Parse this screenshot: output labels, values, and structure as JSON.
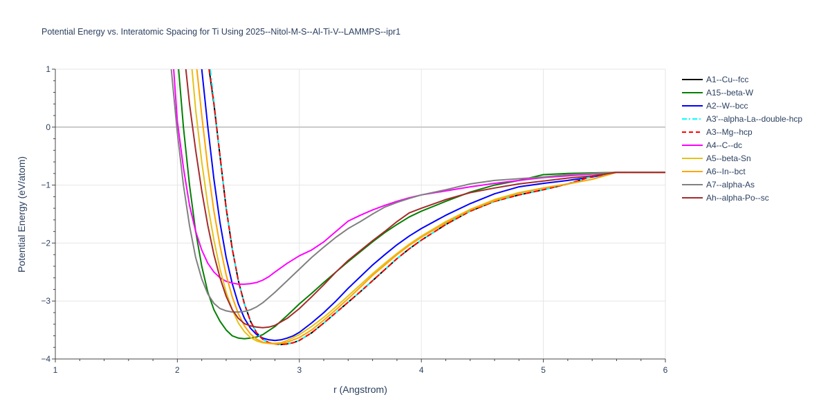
{
  "chart_data": {
    "type": "line",
    "title": "Potential Energy vs. Interatomic Spacing for Ti Using 2025--Nitol-M-S--Al-Ti-V--LAMMPS--ipr1",
    "xlabel": "r (Angstrom)",
    "ylabel": "Potential Energy (eV/atom)",
    "xlim": [
      1,
      6
    ],
    "ylim": [
      -4,
      1
    ],
    "xticks": [
      "1",
      "2",
      "3",
      "4",
      "5",
      "6"
    ],
    "yticks": [
      "−4",
      "−3",
      "−2",
      "−1",
      "0",
      "1"
    ],
    "grid": true,
    "legend_position": "right",
    "series": [
      {
        "name": "A1--Cu--fcc",
        "color": "#000000",
        "dash": "solid",
        "x": [
          2.26,
          2.3,
          2.35,
          2.4,
          2.45,
          2.5,
          2.55,
          2.6,
          2.65,
          2.7,
          2.75,
          2.8,
          2.85,
          2.9,
          2.95,
          3.0,
          3.1,
          3.2,
          3.3,
          3.4,
          3.5,
          3.6,
          3.7,
          3.8,
          3.9,
          4.0,
          4.2,
          4.4,
          4.6,
          4.8,
          5.0,
          5.2,
          5.4,
          5.6,
          6.0
        ],
        "y": [
          1.0,
          0.4,
          -0.5,
          -1.4,
          -2.1,
          -2.65,
          -3.05,
          -3.35,
          -3.55,
          -3.66,
          -3.72,
          -3.74,
          -3.75,
          -3.74,
          -3.72,
          -3.68,
          -3.55,
          -3.38,
          -3.2,
          -3.02,
          -2.84,
          -2.65,
          -2.46,
          -2.27,
          -2.1,
          -1.95,
          -1.68,
          -1.45,
          -1.28,
          -1.17,
          -1.08,
          -0.98,
          -0.85,
          -0.78,
          -0.78
        ]
      },
      {
        "name": "A15--beta-W",
        "color": "#008000",
        "dash": "solid",
        "x": [
          2.01,
          2.05,
          2.1,
          2.15,
          2.2,
          2.25,
          2.3,
          2.35,
          2.4,
          2.45,
          2.5,
          2.55,
          2.6,
          2.65,
          2.7,
          2.8,
          2.9,
          3.0,
          3.1,
          3.2,
          3.3,
          3.4,
          3.5,
          3.6,
          3.7,
          3.8,
          3.9,
          4.0,
          4.2,
          4.4,
          4.6,
          4.8,
          5.0,
          5.2,
          5.6,
          6.0
        ],
        "y": [
          1.0,
          0.0,
          -1.0,
          -1.8,
          -2.4,
          -2.85,
          -3.15,
          -3.35,
          -3.5,
          -3.6,
          -3.64,
          -3.65,
          -3.64,
          -3.62,
          -3.58,
          -3.44,
          -3.25,
          -3.05,
          -2.87,
          -2.68,
          -2.5,
          -2.32,
          -2.15,
          -1.98,
          -1.82,
          -1.68,
          -1.55,
          -1.45,
          -1.28,
          -1.12,
          -1.0,
          -0.92,
          -0.82,
          -0.8,
          -0.78,
          -0.78
        ]
      },
      {
        "name": "A2--W--bcc",
        "color": "#0000ff",
        "dash": "solid",
        "x": [
          2.2,
          2.25,
          2.3,
          2.35,
          2.4,
          2.45,
          2.5,
          2.55,
          2.6,
          2.65,
          2.7,
          2.75,
          2.8,
          2.85,
          2.9,
          2.95,
          3.0,
          3.1,
          3.2,
          3.3,
          3.4,
          3.5,
          3.6,
          3.7,
          3.8,
          3.9,
          4.0,
          4.2,
          4.4,
          4.6,
          4.8,
          5.0,
          5.2,
          5.4,
          5.6,
          6.0
        ],
        "y": [
          1.0,
          0.0,
          -0.9,
          -1.65,
          -2.25,
          -2.7,
          -3.05,
          -3.3,
          -3.47,
          -3.58,
          -3.64,
          -3.67,
          -3.68,
          -3.67,
          -3.64,
          -3.6,
          -3.54,
          -3.38,
          -3.2,
          -3.0,
          -2.78,
          -2.58,
          -2.38,
          -2.2,
          -2.03,
          -1.88,
          -1.75,
          -1.52,
          -1.32,
          -1.15,
          -1.03,
          -0.97,
          -0.92,
          -0.86,
          -0.78,
          -0.78
        ]
      },
      {
        "name": "A3'--alpha-La--double-hcp",
        "color": "#00ffff",
        "dash": "dashdot",
        "x": [
          2.27,
          2.3,
          2.35,
          2.4,
          2.45,
          2.5,
          2.55,
          2.6,
          2.65,
          2.7,
          2.75,
          2.8,
          2.85,
          2.9,
          2.95,
          3.0,
          3.1,
          3.2,
          3.3,
          3.4,
          3.5,
          3.6,
          3.7,
          3.8,
          3.9,
          4.0,
          4.2,
          4.4,
          4.6,
          4.8,
          5.0,
          5.2,
          5.4,
          5.6,
          6.0
        ],
        "y": [
          1.0,
          0.45,
          -0.5,
          -1.4,
          -2.1,
          -2.65,
          -3.05,
          -3.35,
          -3.55,
          -3.66,
          -3.72,
          -3.74,
          -3.75,
          -3.74,
          -3.72,
          -3.68,
          -3.55,
          -3.38,
          -3.2,
          -3.02,
          -2.84,
          -2.65,
          -2.46,
          -2.27,
          -2.1,
          -1.95,
          -1.68,
          -1.45,
          -1.28,
          -1.17,
          -1.08,
          -0.98,
          -0.85,
          -0.78,
          -0.78
        ]
      },
      {
        "name": "A3--Mg--hcp",
        "color": "#ff0000",
        "dash": "dash",
        "x": [
          2.26,
          2.3,
          2.35,
          2.4,
          2.45,
          2.5,
          2.55,
          2.6,
          2.65,
          2.7,
          2.75,
          2.8,
          2.85,
          2.9,
          2.95,
          3.0,
          3.1,
          3.2,
          3.3,
          3.4,
          3.5,
          3.6,
          3.7,
          3.8,
          3.9,
          4.0,
          4.2,
          4.4,
          4.6,
          4.8,
          5.0,
          5.2,
          5.4,
          5.6,
          6.0
        ],
        "y": [
          1.0,
          0.4,
          -0.5,
          -1.4,
          -2.1,
          -2.65,
          -3.05,
          -3.35,
          -3.55,
          -3.66,
          -3.72,
          -3.74,
          -3.75,
          -3.74,
          -3.72,
          -3.68,
          -3.55,
          -3.38,
          -3.2,
          -3.02,
          -2.84,
          -2.65,
          -2.46,
          -2.27,
          -2.1,
          -1.95,
          -1.68,
          -1.45,
          -1.28,
          -1.17,
          -1.08,
          -0.98,
          -0.85,
          -0.78,
          -0.78
        ]
      },
      {
        "name": "A4--C--dc",
        "color": "#ff00ff",
        "dash": "solid",
        "x": [
          1.97,
          2.0,
          2.05,
          2.1,
          2.15,
          2.2,
          2.25,
          2.3,
          2.35,
          2.4,
          2.45,
          2.5,
          2.55,
          2.6,
          2.65,
          2.7,
          2.75,
          2.8,
          2.9,
          3.0,
          3.1,
          3.2,
          3.3,
          3.4,
          3.5,
          3.6,
          3.7,
          3.8,
          3.9,
          4.0,
          4.2,
          4.4,
          4.6,
          4.8,
          5.0,
          5.2,
          5.6,
          6.0
        ],
        "y": [
          1.0,
          0.1,
          -0.7,
          -1.35,
          -1.8,
          -2.12,
          -2.35,
          -2.5,
          -2.6,
          -2.66,
          -2.69,
          -2.71,
          -2.71,
          -2.7,
          -2.68,
          -2.64,
          -2.58,
          -2.5,
          -2.35,
          -2.22,
          -2.12,
          -1.98,
          -1.8,
          -1.62,
          -1.52,
          -1.43,
          -1.35,
          -1.28,
          -1.22,
          -1.17,
          -1.1,
          -1.03,
          -0.97,
          -0.92,
          -0.87,
          -0.84,
          -0.78,
          -0.78
        ]
      },
      {
        "name": "A5--beta-Sn",
        "color": "#e3c21a",
        "dash": "solid",
        "x": [
          2.12,
          2.15,
          2.2,
          2.25,
          2.3,
          2.35,
          2.4,
          2.45,
          2.5,
          2.55,
          2.6,
          2.65,
          2.7,
          2.75,
          2.8,
          2.85,
          2.9,
          3.0,
          3.1,
          3.2,
          3.3,
          3.4,
          3.5,
          3.6,
          3.7,
          3.8,
          3.9,
          4.0,
          4.2,
          4.4,
          4.6,
          4.8,
          5.0,
          5.2,
          5.4,
          5.6,
          6.0
        ],
        "y": [
          1.0,
          0.3,
          -0.6,
          -1.35,
          -1.95,
          -2.45,
          -2.85,
          -3.15,
          -3.38,
          -3.53,
          -3.63,
          -3.69,
          -3.72,
          -3.73,
          -3.73,
          -3.72,
          -3.68,
          -3.58,
          -3.44,
          -3.28,
          -3.1,
          -2.91,
          -2.72,
          -2.53,
          -2.35,
          -2.18,
          -2.02,
          -1.88,
          -1.63,
          -1.42,
          -1.25,
          -1.13,
          -1.05,
          -0.98,
          -0.9,
          -0.78,
          -0.78
        ]
      },
      {
        "name": "A6--In--bct",
        "color": "#ffa500",
        "dash": "solid",
        "x": [
          2.16,
          2.2,
          2.25,
          2.3,
          2.35,
          2.4,
          2.45,
          2.5,
          2.55,
          2.6,
          2.65,
          2.7,
          2.75,
          2.8,
          2.85,
          2.9,
          3.0,
          3.1,
          3.2,
          3.3,
          3.4,
          3.5,
          3.6,
          3.7,
          3.8,
          3.9,
          4.0,
          4.2,
          4.4,
          4.6,
          4.8,
          5.0,
          5.2,
          5.4,
          5.6,
          6.0
        ],
        "y": [
          1.0,
          0.2,
          -0.7,
          -1.45,
          -2.05,
          -2.55,
          -2.93,
          -3.22,
          -3.43,
          -3.57,
          -3.66,
          -3.71,
          -3.73,
          -3.74,
          -3.73,
          -3.71,
          -3.63,
          -3.5,
          -3.33,
          -3.15,
          -2.96,
          -2.76,
          -2.56,
          -2.38,
          -2.2,
          -2.04,
          -1.9,
          -1.65,
          -1.43,
          -1.27,
          -1.14,
          -1.05,
          -0.98,
          -0.9,
          -0.78,
          -0.78
        ]
      },
      {
        "name": "A7--alpha-As",
        "color": "#808080",
        "dash": "solid",
        "x": [
          1.95,
          2.0,
          2.05,
          2.1,
          2.15,
          2.2,
          2.25,
          2.3,
          2.35,
          2.4,
          2.45,
          2.5,
          2.55,
          2.6,
          2.65,
          2.7,
          2.8,
          2.9,
          3.0,
          3.1,
          3.2,
          3.3,
          3.4,
          3.5,
          3.6,
          3.7,
          3.8,
          3.9,
          4.0,
          4.2,
          4.4,
          4.6,
          4.8,
          5.0,
          5.2,
          5.6,
          6.0
        ],
        "y": [
          1.0,
          -0.1,
          -1.0,
          -1.7,
          -2.25,
          -2.62,
          -2.88,
          -3.04,
          -3.13,
          -3.17,
          -3.19,
          -3.19,
          -3.18,
          -3.15,
          -3.1,
          -3.03,
          -2.85,
          -2.65,
          -2.45,
          -2.25,
          -2.07,
          -1.9,
          -1.75,
          -1.63,
          -1.5,
          -1.38,
          -1.3,
          -1.23,
          -1.17,
          -1.08,
          -0.98,
          -0.92,
          -0.89,
          -0.86,
          -0.82,
          -0.78,
          -0.78
        ]
      },
      {
        "name": "Ah--alpha-Po--sc",
        "color": "#a52a2a",
        "dash": "solid",
        "x": [
          2.07,
          2.1,
          2.15,
          2.2,
          2.25,
          2.3,
          2.35,
          2.4,
          2.45,
          2.5,
          2.55,
          2.6,
          2.65,
          2.7,
          2.75,
          2.8,
          2.9,
          3.0,
          3.1,
          3.2,
          3.3,
          3.4,
          3.5,
          3.6,
          3.7,
          3.8,
          3.9,
          4.0,
          4.2,
          4.4,
          4.6,
          4.8,
          5.0,
          5.2,
          5.4,
          5.6,
          6.0
        ],
        "y": [
          1.0,
          0.4,
          -0.4,
          -1.1,
          -1.7,
          -2.2,
          -2.6,
          -2.92,
          -3.15,
          -3.3,
          -3.39,
          -3.43,
          -3.45,
          -3.46,
          -3.45,
          -3.42,
          -3.3,
          -3.13,
          -2.93,
          -2.72,
          -2.5,
          -2.3,
          -2.13,
          -1.96,
          -1.8,
          -1.63,
          -1.48,
          -1.4,
          -1.25,
          -1.13,
          -1.05,
          -0.98,
          -0.93,
          -0.88,
          -0.84,
          -0.78,
          -0.78
        ]
      }
    ]
  }
}
